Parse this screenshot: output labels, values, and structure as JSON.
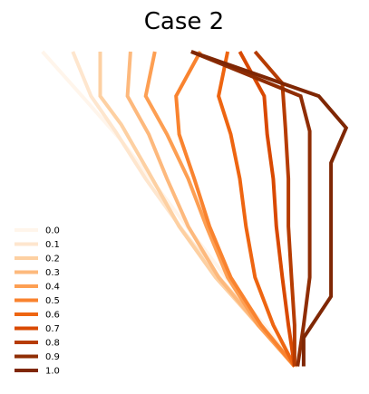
{
  "chart_data": {
    "type": "line",
    "title": "Case 2",
    "xlabel": "",
    "ylabel": "",
    "axes_visible": false,
    "grid": false,
    "legend_placement": "lower-left",
    "xlim": [
      0,
      1
    ],
    "ylim": [
      0,
      1
    ],
    "colormap": "Oranges",
    "series": [
      {
        "name": "0.0",
        "color": "#fff5eb",
        "points": [
          [
            0.08,
            1.0
          ],
          [
            0.22,
            0.85
          ],
          [
            0.34,
            0.72
          ],
          [
            0.46,
            0.57
          ],
          [
            0.58,
            0.42
          ],
          [
            0.7,
            0.27
          ],
          [
            0.81,
            0.14
          ],
          [
            0.92,
            0.01
          ]
        ]
      },
      {
        "name": "0.1",
        "color": "#fee6ce",
        "points": [
          [
            0.18,
            1.0
          ],
          [
            0.24,
            0.86
          ],
          [
            0.32,
            0.75
          ],
          [
            0.42,
            0.6
          ],
          [
            0.54,
            0.44
          ],
          [
            0.67,
            0.28
          ],
          [
            0.8,
            0.14
          ],
          [
            0.92,
            0.01
          ]
        ]
      },
      {
        "name": "0.2",
        "color": "#fdd0a2",
        "points": [
          [
            0.27,
            1.0
          ],
          [
            0.27,
            0.86
          ],
          [
            0.34,
            0.77
          ],
          [
            0.43,
            0.62
          ],
          [
            0.53,
            0.45
          ],
          [
            0.65,
            0.29
          ],
          [
            0.79,
            0.14
          ],
          [
            0.92,
            0.01
          ]
        ]
      },
      {
        "name": "0.3",
        "color": "#fdb97d",
        "points": [
          [
            0.37,
            1.0
          ],
          [
            0.36,
            0.86
          ],
          [
            0.43,
            0.74
          ],
          [
            0.49,
            0.6
          ],
          [
            0.56,
            0.45
          ],
          [
            0.66,
            0.29
          ],
          [
            0.79,
            0.14
          ],
          [
            0.91,
            0.01
          ]
        ]
      },
      {
        "name": "0.4",
        "color": "#fd9f53",
        "points": [
          [
            0.45,
            1.0
          ],
          [
            0.42,
            0.86
          ],
          [
            0.49,
            0.74
          ],
          [
            0.56,
            0.6
          ],
          [
            0.62,
            0.45
          ],
          [
            0.69,
            0.29
          ],
          [
            0.79,
            0.14
          ],
          [
            0.91,
            0.01
          ]
        ]
      },
      {
        "name": "0.5",
        "color": "#f9832f",
        "points": [
          [
            0.6,
            1.0
          ],
          [
            0.52,
            0.86
          ],
          [
            0.53,
            0.74
          ],
          [
            0.58,
            0.6
          ],
          [
            0.63,
            0.45
          ],
          [
            0.7,
            0.29
          ],
          [
            0.8,
            0.14
          ],
          [
            0.91,
            0.01
          ]
        ]
      },
      {
        "name": "0.6",
        "color": "#ee6511",
        "points": [
          [
            0.69,
            1.0
          ],
          [
            0.66,
            0.86
          ],
          [
            0.7,
            0.74
          ],
          [
            0.73,
            0.6
          ],
          [
            0.75,
            0.45
          ],
          [
            0.78,
            0.29
          ],
          [
            0.84,
            0.14
          ],
          [
            0.91,
            0.01
          ]
        ]
      },
      {
        "name": "0.7",
        "color": "#d94901",
        "points": [
          [
            0.73,
            1.0
          ],
          [
            0.81,
            0.86
          ],
          [
            0.82,
            0.74
          ],
          [
            0.84,
            0.6
          ],
          [
            0.85,
            0.45
          ],
          [
            0.87,
            0.29
          ],
          [
            0.89,
            0.14
          ],
          [
            0.91,
            0.01
          ]
        ]
      },
      {
        "name": "0.8",
        "color": "#b63c02",
        "points": [
          [
            0.78,
            1.0
          ],
          [
            0.87,
            0.9
          ],
          [
            0.88,
            0.76
          ],
          [
            0.89,
            0.6
          ],
          [
            0.89,
            0.45
          ],
          [
            0.9,
            0.29
          ],
          [
            0.91,
            0.14
          ],
          [
            0.91,
            0.01
          ]
        ]
      },
      {
        "name": "0.9",
        "color": "#8f2d04",
        "points": [
          [
            0.57,
            1.0
          ],
          [
            0.93,
            0.86
          ],
          [
            0.96,
            0.75
          ],
          [
            0.96,
            0.6
          ],
          [
            0.96,
            0.45
          ],
          [
            0.96,
            0.29
          ],
          [
            0.94,
            0.14
          ],
          [
            0.92,
            0.01
          ]
        ]
      },
      {
        "name": "1.0",
        "color": "#7f2704",
        "points": [
          [
            0.57,
            1.0
          ],
          [
            0.99,
            0.86
          ],
          [
            1.08,
            0.76
          ],
          [
            1.03,
            0.65
          ],
          [
            1.03,
            0.45
          ],
          [
            1.03,
            0.23
          ],
          [
            0.94,
            0.1
          ],
          [
            0.94,
            0.01
          ]
        ]
      }
    ]
  }
}
